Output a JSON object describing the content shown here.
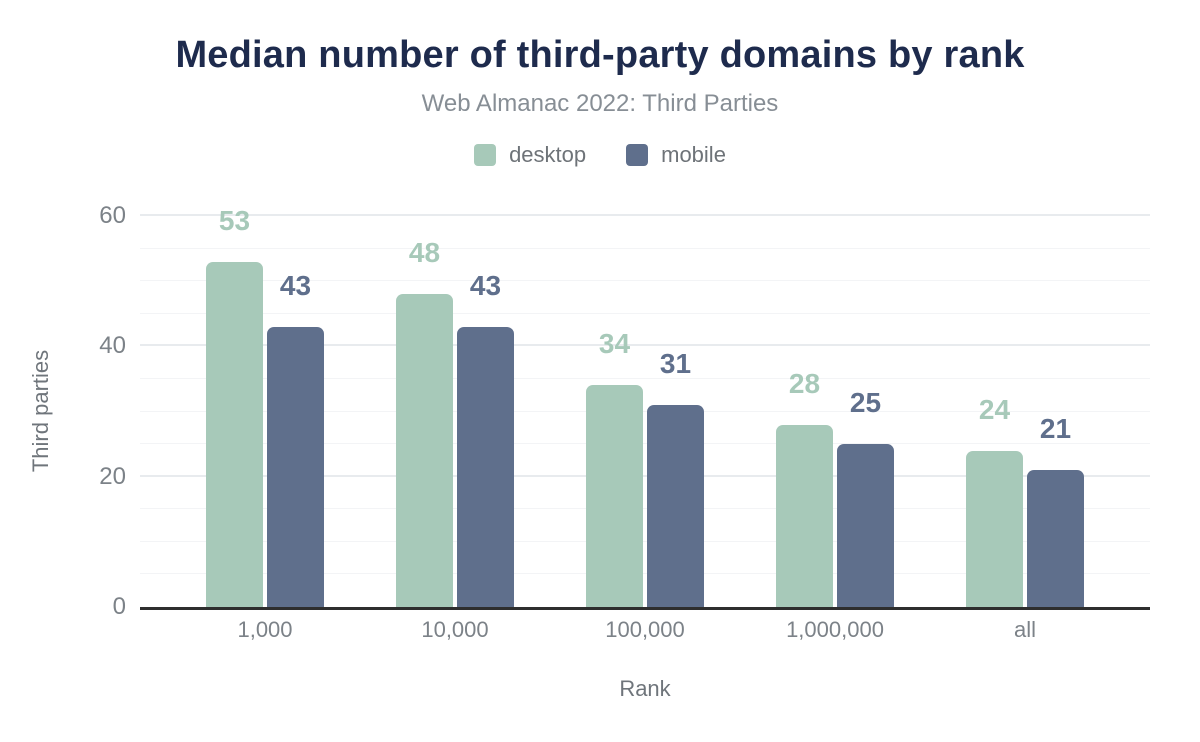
{
  "chart_data": {
    "type": "bar",
    "title": "Median number of third-party domains by rank",
    "subtitle": "Web Almanac 2022: Third Parties",
    "categories": [
      "1,000",
      "10,000",
      "100,000",
      "1,000,000",
      "all"
    ],
    "series": [
      {
        "name": "desktop",
        "color": "#a7c9b9",
        "values": [
          53,
          48,
          34,
          28,
          24
        ]
      },
      {
        "name": "mobile",
        "color": "#5f6f8c",
        "values": [
          43,
          43,
          31,
          25,
          21
        ]
      }
    ],
    "xlabel": "Rank",
    "ylabel": "Third parties",
    "ylim": [
      0,
      60
    ],
    "yticks": [
      0,
      20,
      40,
      60
    ],
    "minor_gridline_step": 5,
    "grid": true,
    "legend_position": "top",
    "data_labels": true,
    "colors": {
      "title": "#1e2b4d",
      "subtitle": "#878e95",
      "axis_text": "#7c8288",
      "axis_title_text": "#6f757b",
      "axis_line": "#2e2e2e",
      "gridline_major": "#e8ebee",
      "gridline_minor": "#f3f4f6",
      "background": "#ffffff"
    }
  }
}
